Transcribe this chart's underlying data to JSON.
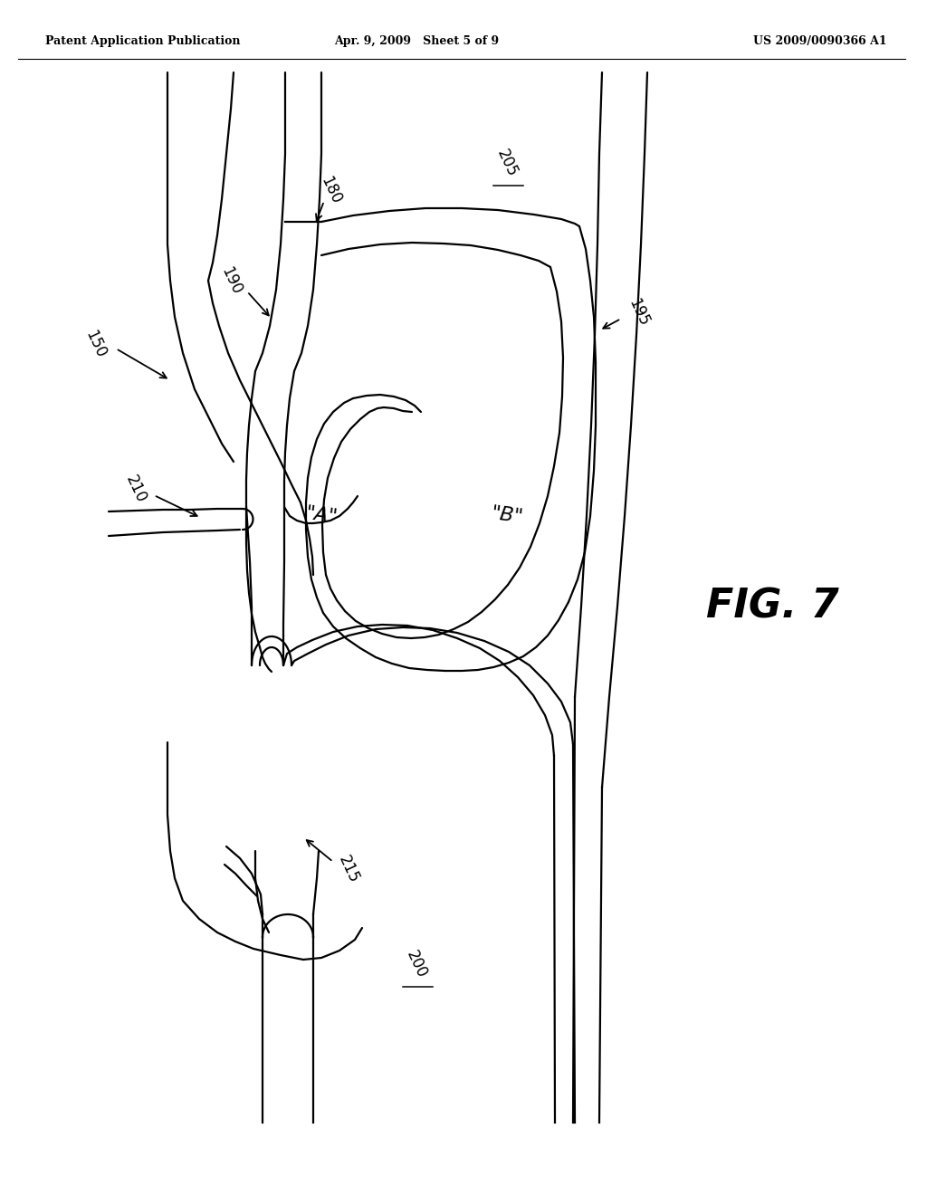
{
  "header_left": "Patent Application Publication",
  "header_mid": "Apr. 9, 2009   Sheet 5 of 9",
  "header_right": "US 2009/0090366 A1",
  "fig_label": "FIG. 7",
  "background_color": "#ffffff",
  "line_color": "#000000"
}
